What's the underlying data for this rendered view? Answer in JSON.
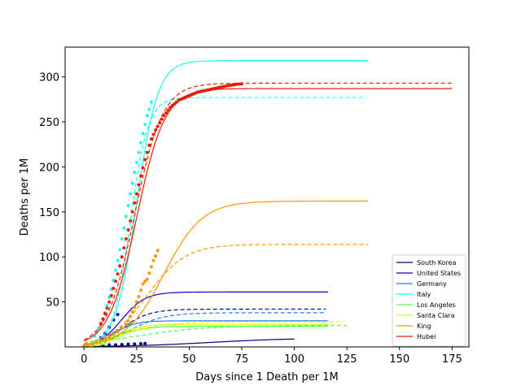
{
  "chart_data": {
    "type": "line",
    "title": "",
    "xlabel": "Days since 1 Death per 1M",
    "ylabel": "Deaths per 1M",
    "xlim": [
      -9,
      183
    ],
    "ylim": [
      0,
      333
    ],
    "xticks": [
      0,
      25,
      50,
      75,
      100,
      125,
      150,
      175
    ],
    "yticks": [
      50,
      100,
      150,
      200,
      250,
      300
    ],
    "grid": false,
    "legend_position": "lower-right",
    "series": [
      {
        "name": "South Korea",
        "color": "#00007f",
        "fit_solid": {
          "L": 10,
          "r": 0.05,
          "t0": 60,
          "x_end": 100
        },
        "fit_dashed": {
          "L": 42,
          "r": 0.15,
          "t0": 18,
          "x_end": 115
        },
        "observed": [
          [
            0,
            1
          ],
          [
            3,
            1.3
          ],
          [
            6,
            1.6
          ],
          [
            9,
            1.9
          ],
          [
            12,
            2.2
          ],
          [
            15,
            2.4
          ],
          [
            18,
            2.7
          ],
          [
            21,
            3
          ],
          [
            24,
            3.3
          ],
          [
            27,
            3.6
          ],
          [
            29,
            3.8
          ]
        ]
      },
      {
        "name": "United States",
        "color": "#0000cd",
        "fit_solid": {
          "L": 61,
          "r": 0.18,
          "t0": 18,
          "x_end": 116
        },
        "fit_dashed": null,
        "observed": [
          [
            0,
            1
          ],
          [
            2,
            2
          ],
          [
            4,
            4
          ],
          [
            6,
            6
          ],
          [
            8,
            10
          ],
          [
            10,
            15
          ],
          [
            12,
            22
          ],
          [
            14,
            30
          ],
          [
            16,
            36
          ]
        ]
      },
      {
        "name": "Germany",
        "color": "#1c7cff",
        "fit_solid": {
          "L": 29,
          "r": 0.2,
          "t0": 14,
          "x_end": 116
        },
        "fit_dashed": {
          "L": 38,
          "r": 0.12,
          "t0": 22,
          "x_end": 115
        },
        "observed": [
          [
            0,
            1
          ],
          [
            2,
            1.5
          ],
          [
            4,
            2.5
          ],
          [
            6,
            4
          ],
          [
            8,
            6
          ],
          [
            10,
            9
          ],
          [
            12,
            12
          ],
          [
            14,
            15
          ],
          [
            16,
            18
          ],
          [
            18,
            21
          ],
          [
            20,
            23
          ],
          [
            22,
            25
          ]
        ]
      },
      {
        "name": "Italy",
        "color": "#1cffe7",
        "fit_solid": {
          "L": 318,
          "r": 0.2,
          "t0": 25,
          "x_end": 135
        },
        "fit_dashed": {
          "L": 277,
          "r": 0.24,
          "t0": 22,
          "x_end": 134
        },
        "observed": [
          [
            5,
            12
          ],
          [
            6,
            16
          ],
          [
            7,
            20
          ],
          [
            8,
            25
          ],
          [
            9,
            31
          ],
          [
            10,
            38
          ],
          [
            11,
            46
          ],
          [
            12,
            55
          ],
          [
            13,
            64
          ],
          [
            14,
            74
          ],
          [
            15,
            85
          ],
          [
            16,
            96
          ],
          [
            17,
            108
          ],
          [
            18,
            120
          ],
          [
            19,
            132
          ],
          [
            20,
            145
          ],
          [
            21,
            157
          ],
          [
            22,
            170
          ],
          [
            23,
            182
          ],
          [
            24,
            194
          ],
          [
            25,
            205
          ],
          [
            26,
            216
          ],
          [
            27,
            227
          ],
          [
            28,
            237
          ],
          [
            29,
            247
          ],
          [
            30,
            257
          ],
          [
            31,
            264
          ],
          [
            32,
            272
          ]
        ]
      },
      {
        "name": "Los Angeles",
        "color": "#4eff4e",
        "fit_solid": {
          "L": 23,
          "r": 0.16,
          "t0": 16,
          "x_end": 116
        },
        "fit_dashed": {
          "L": 24,
          "r": 0.06,
          "t0": 25,
          "x_end": 125
        },
        "observed": [
          [
            0,
            0.8
          ],
          [
            2,
            1.2
          ],
          [
            4,
            1.8
          ],
          [
            6,
            2.6
          ],
          [
            8,
            3.8
          ],
          [
            10,
            5.4
          ],
          [
            12,
            7.5
          ],
          [
            14,
            10
          ],
          [
            16,
            12.5
          ],
          [
            18,
            14.5
          ],
          [
            20,
            16.5
          ],
          [
            22,
            18
          ]
        ]
      },
      {
        "name": "Santa Clara",
        "color": "#d7ff1c",
        "fit_solid": {
          "L": 25,
          "r": 0.18,
          "t0": 15,
          "x_end": 116
        },
        "fit_dashed": {
          "L": 28,
          "r": 0.1,
          "t0": 18,
          "x_end": 124
        },
        "observed": [
          [
            0,
            0.8
          ],
          [
            3,
            1.4
          ],
          [
            6,
            2.5
          ],
          [
            9,
            4
          ],
          [
            12,
            6.5
          ],
          [
            15,
            9.5
          ],
          [
            18,
            13
          ],
          [
            21,
            16
          ],
          [
            24,
            18.5
          ],
          [
            27,
            20
          ],
          [
            30,
            21
          ]
        ]
      },
      {
        "name": "King",
        "color": "#ff9400",
        "fit_solid": {
          "L": 162,
          "r": 0.11,
          "t0": 38,
          "x_end": 135
        },
        "fit_dashed": {
          "L": 114,
          "r": 0.11,
          "t0": 30,
          "x_end": 135
        },
        "observed": [
          [
            0,
            1
          ],
          [
            2,
            2
          ],
          [
            4,
            3
          ],
          [
            6,
            5
          ],
          [
            8,
            7
          ],
          [
            10,
            9
          ],
          [
            12,
            11
          ],
          [
            14,
            14
          ],
          [
            16,
            17
          ],
          [
            18,
            21
          ],
          [
            20,
            25
          ],
          [
            21,
            29
          ],
          [
            22,
            34
          ],
          [
            23,
            39
          ],
          [
            24,
            44
          ],
          [
            25,
            50
          ],
          [
            26,
            56
          ],
          [
            27,
            63
          ],
          [
            28,
            70
          ],
          [
            29,
            73
          ],
          [
            30,
            75
          ],
          [
            31,
            82
          ],
          [
            32,
            89
          ],
          [
            33,
            96
          ],
          [
            34,
            101
          ],
          [
            35,
            107
          ]
        ]
      },
      {
        "name": "Hubei",
        "color": "#e81c00",
        "fit_solid": {
          "L": 287,
          "r": 0.15,
          "t0": 25,
          "x_end": 175
        },
        "fit_dashed": {
          "L": 293,
          "r": 0.15,
          "t0": 24,
          "x_end": 175
        },
        "observed": [
          [
            8,
            26
          ],
          [
            9,
            31
          ],
          [
            10,
            37
          ],
          [
            11,
            43
          ],
          [
            12,
            50
          ],
          [
            13,
            57
          ],
          [
            14,
            65
          ],
          [
            15,
            73
          ],
          [
            16,
            81
          ],
          [
            17,
            90
          ],
          [
            18,
            100
          ],
          [
            19,
            110
          ],
          [
            20,
            120
          ],
          [
            21,
            130
          ],
          [
            22,
            140
          ],
          [
            23,
            150
          ],
          [
            24,
            160
          ],
          [
            25,
            170
          ],
          [
            26,
            180
          ],
          [
            27,
            190
          ],
          [
            28,
            199
          ],
          [
            29,
            208
          ],
          [
            30,
            216
          ],
          [
            31,
            224
          ],
          [
            32,
            231
          ],
          [
            33,
            236
          ],
          [
            34,
            241
          ],
          [
            35,
            245
          ],
          [
            36,
            249
          ],
          [
            37,
            253
          ],
          [
            38,
            257
          ],
          [
            39,
            260
          ],
          [
            40,
            263
          ],
          [
            41,
            266
          ],
          [
            42,
            268
          ],
          [
            43,
            270
          ],
          [
            44,
            272
          ],
          [
            45,
            274
          ],
          [
            46,
            275
          ],
          [
            47,
            276
          ],
          [
            48,
            277
          ],
          [
            49,
            278
          ],
          [
            50,
            279
          ],
          [
            51,
            280
          ],
          [
            52,
            281
          ],
          [
            53,
            282
          ],
          [
            54,
            283
          ],
          [
            55,
            283.5
          ],
          [
            56,
            284
          ],
          [
            57,
            284.5
          ],
          [
            58,
            285
          ],
          [
            59,
            285.5
          ],
          [
            60,
            286
          ],
          [
            61,
            286.5
          ],
          [
            62,
            287
          ],
          [
            63,
            287.5
          ],
          [
            64,
            288
          ],
          [
            65,
            288.5
          ],
          [
            66,
            289
          ],
          [
            67,
            289.5
          ],
          [
            68,
            290
          ],
          [
            69,
            290.4
          ],
          [
            70,
            290.8
          ],
          [
            71,
            291.2
          ],
          [
            72,
            291.5
          ],
          [
            73,
            291.8
          ],
          [
            74,
            292
          ],
          [
            75,
            292.2
          ]
        ]
      }
    ]
  }
}
